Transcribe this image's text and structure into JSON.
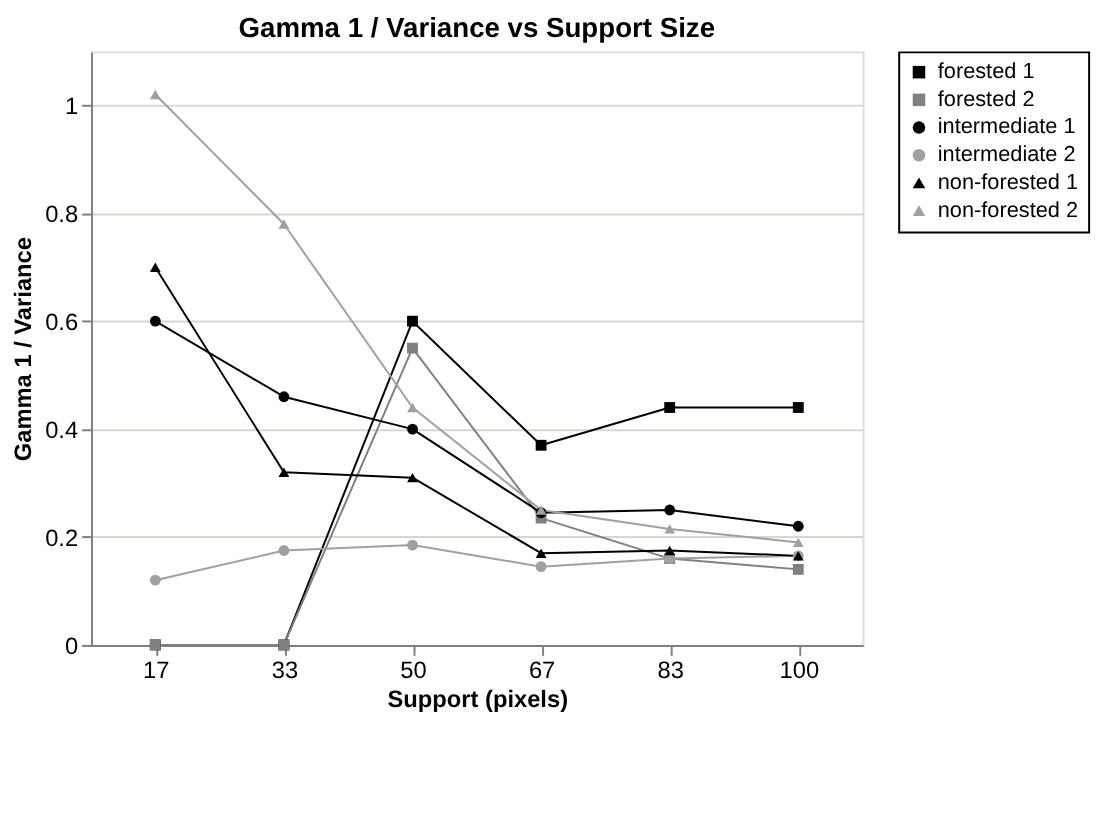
{
  "chart_data": {
    "type": "line",
    "title": "Gamma 1 / Variance vs Support Size",
    "xlabel": "Support (pixels)",
    "ylabel": "Gamma 1 / Variance",
    "categories": [
      "17",
      "33",
      "50",
      "67",
      "83",
      "100"
    ],
    "series": [
      {
        "name": "forested 1",
        "color": "#000000",
        "marker": "square",
        "values": [
          0,
          0,
          0.6,
          0.37,
          0.44,
          0.44
        ]
      },
      {
        "name": "forested 2",
        "color": "#808080",
        "marker": "square",
        "values": [
          0,
          0,
          0.55,
          0.235,
          0.16,
          0.14
        ]
      },
      {
        "name": "intermediate 1",
        "color": "#000000",
        "marker": "circle",
        "values": [
          0.6,
          0.46,
          0.4,
          0.245,
          0.25,
          0.22
        ]
      },
      {
        "name": "intermediate 2",
        "color": "#a0a0a0",
        "marker": "circle",
        "values": [
          0.12,
          0.175,
          0.185,
          0.145,
          0.16,
          0.165
        ]
      },
      {
        "name": "non-forested 1",
        "color": "#000000",
        "marker": "triangle",
        "values": [
          0.7,
          0.32,
          0.31,
          0.17,
          0.175,
          0.165
        ]
      },
      {
        "name": "non-forested 2",
        "color": "#a0a0a0",
        "marker": "triangle",
        "values": [
          1.02,
          0.78,
          0.44,
          0.25,
          0.215,
          0.19
        ]
      }
    ],
    "ylim": [
      0,
      1.1
    ],
    "yticks": [
      0,
      {
        "value": 0.2,
        "label": "0.2"
      },
      {
        "value": 0.4,
        "label": "0.4"
      },
      {
        "value": 0.6,
        "label": "0.6"
      },
      {
        "value": 0.8,
        "label": "0.8"
      },
      1
    ],
    "grid": "y",
    "legend": "right"
  }
}
